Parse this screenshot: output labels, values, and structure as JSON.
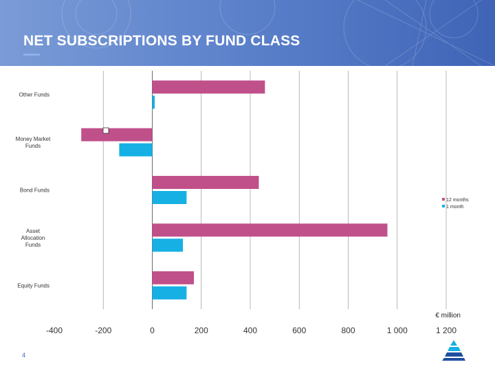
{
  "header": {
    "title": "NET SUBSCRIPTIONS BY FUND CLASS"
  },
  "footer": {
    "page_number": "4"
  },
  "chart_data": {
    "type": "bar",
    "orientation": "horizontal",
    "categories": [
      "Other Funds",
      "Money Market Funds",
      "Bond Funds",
      "Asset Allocation Funds",
      "Equity Funds"
    ],
    "category_lines": [
      [
        "Other Funds"
      ],
      [
        "Money Market",
        "Funds"
      ],
      [
        "Bond Funds"
      ],
      [
        "Asset",
        "Allocation",
        "Funds"
      ],
      [
        "Equity Funds"
      ]
    ],
    "series": [
      {
        "name": "12 months",
        "color": "#c0508a",
        "values": [
          460,
          -290,
          435,
          960,
          170
        ]
      },
      {
        "name": "1 month",
        "color": "#16b0e4",
        "values": [
          10,
          -135,
          140,
          125,
          140
        ]
      }
    ],
    "xlim": [
      -400,
      1200
    ],
    "xticks": [
      -400,
      -200,
      0,
      200,
      400,
      600,
      800,
      1000,
      1200
    ],
    "xtick_labels": [
      "-400",
      "-200",
      "0",
      "200",
      "400",
      "600",
      "800",
      "1 000",
      "1 200"
    ],
    "xlabel": "€ million",
    "grid": "vertical",
    "legend_position": "right"
  }
}
